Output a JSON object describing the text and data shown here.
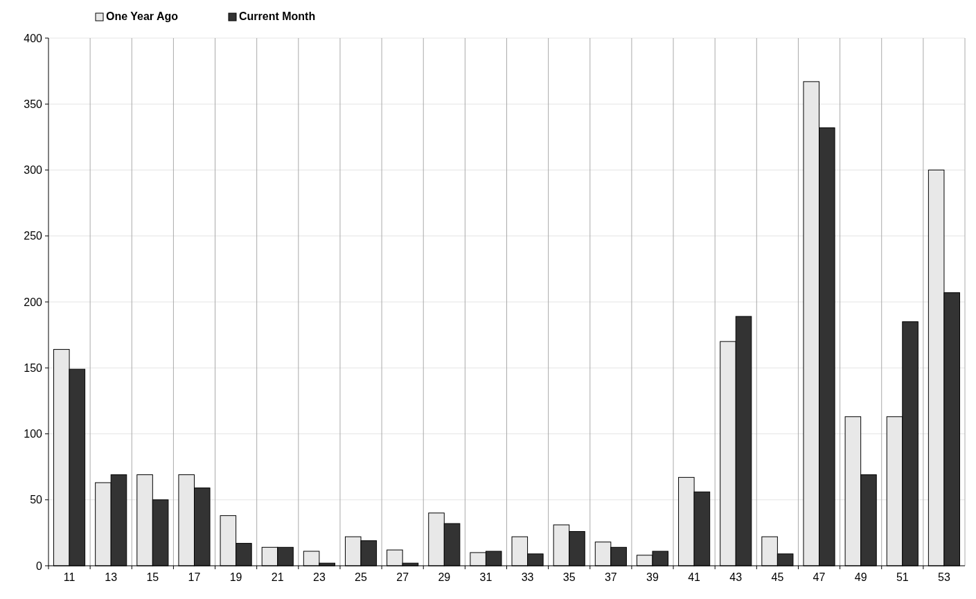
{
  "chart_data": {
    "type": "bar",
    "categories": [
      "11",
      "13",
      "15",
      "17",
      "19",
      "21",
      "23",
      "25",
      "27",
      "29",
      "31",
      "33",
      "35",
      "37",
      "39",
      "41",
      "43",
      "45",
      "47",
      "49",
      "51",
      "53"
    ],
    "series": [
      {
        "name": "One Year Ago",
        "color": "#e8e8e8",
        "values": [
          164,
          63,
          69,
          69,
          38,
          14,
          11,
          22,
          12,
          40,
          10,
          22,
          31,
          18,
          8,
          67,
          170,
          22,
          367,
          113,
          113,
          300
        ]
      },
      {
        "name": "Current Month",
        "color": "#333333",
        "values": [
          149,
          69,
          50,
          59,
          17,
          14,
          2,
          19,
          2,
          32,
          11,
          9,
          26,
          14,
          11,
          56,
          189,
          9,
          332,
          69,
          185,
          207
        ]
      }
    ],
    "ylim": [
      0,
      400
    ],
    "yticks": [
      0,
      50,
      100,
      150,
      200,
      250,
      300,
      350,
      400
    ],
    "grid": true,
    "legend": "top left"
  }
}
